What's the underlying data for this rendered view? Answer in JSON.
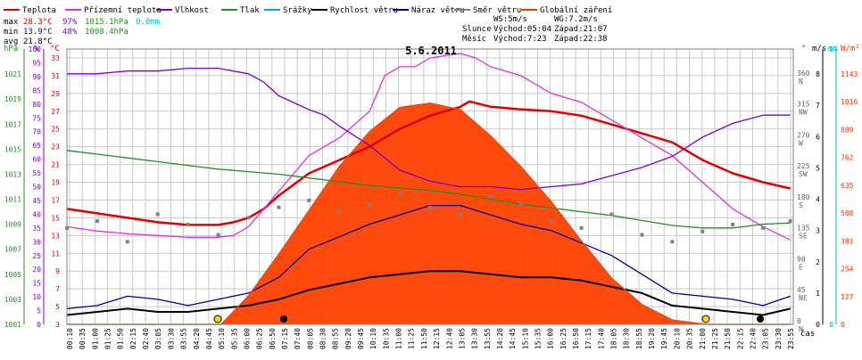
{
  "colors": {
    "teplota": "#e00000",
    "pocitova": "#e030e0",
    "vlhkost": "#8000c0",
    "tlak": "#209020",
    "srazky": "#00b0d0",
    "vitr": "#000000",
    "naraz": "#000090",
    "smer": "#808080",
    "zareni": "#ff3300",
    "zareni_fill": "#ff4000",
    "grid": "#c8c8c8",
    "frame": "#808080",
    "axis_hpa": "#209020",
    "axis_pct": "#8000c0",
    "axis_c": "#e00000",
    "axis_dir": "#606060",
    "axis_ms": "#000000",
    "axis_mm": "#00b0d0",
    "axis_wm2": "#ff3300"
  },
  "legend": [
    {
      "key": "teplota",
      "label": "Teplota"
    },
    {
      "key": "pocitova",
      "label": "Přízemní teplota"
    },
    {
      "key": "vlhkost",
      "label": "Vlhkost"
    },
    {
      "key": "tlak",
      "label": "Tlak"
    },
    {
      "key": "srazky",
      "label": "Srážky"
    },
    {
      "key": "vitr",
      "label": "Rychlost větru"
    },
    {
      "key": "naraz",
      "label": "Náraz větru"
    },
    {
      "key": "smer",
      "label": "Směr větru"
    },
    {
      "key": "zareni",
      "label": "Globální záření"
    }
  ],
  "stats": {
    "max_label": "max",
    "max_temp": "28.3°C",
    "max_hum": "97%",
    "max_press": "1015.1hPa",
    "rain": "0.0mm",
    "min_label": "min",
    "min_temp": "13.9°C",
    "min_hum": "48%",
    "min_press": "1008.4hPa",
    "avg_label": "avg",
    "avg_temp": "21.8°C"
  },
  "astro": {
    "ws": "WS:5m/s",
    "wg": "WG:7.2m/s",
    "sun_label": "Slunce",
    "sunrise": "Východ:05:04",
    "sunset": "Západ:21:07",
    "moon_label": "Měsíc",
    "moonrise": "Východ:7:23",
    "moonset": "Západ:22:38"
  },
  "chart_data": {
    "type": "line",
    "title": "5.6.2011",
    "xlabel": "čas",
    "x_ticks": [
      "00:10",
      "00:35",
      "01:00",
      "01:25",
      "01:50",
      "02:15",
      "02:40",
      "03:05",
      "03:30",
      "03:55",
      "04:20",
      "04:45",
      "05:10",
      "05:35",
      "06:00",
      "06:25",
      "06:50",
      "07:15",
      "07:40",
      "08:05",
      "08:30",
      "08:55",
      "09:20",
      "09:45",
      "10:10",
      "10:35",
      "11:00",
      "11:25",
      "11:50",
      "12:15",
      "12:40",
      "13:05",
      "13:30",
      "13:55",
      "14:20",
      "14:45",
      "15:10",
      "15:35",
      "16:00",
      "16:25",
      "16:50",
      "17:15",
      "17:40",
      "18:05",
      "18:30",
      "18:55",
      "19:20",
      "19:45",
      "20:10",
      "20:35",
      "21:00",
      "21:25",
      "21:50",
      "22:15",
      "22:40",
      "23:05",
      "23:30",
      "23:55"
    ],
    "axes": {
      "hpa": {
        "label": "hPa",
        "ticks": [
          "1001",
          "1003",
          "1005",
          "1007",
          "1009",
          "1011",
          "1013",
          "1015",
          "1017",
          "1019",
          "1021"
        ],
        "range": [
          1001,
          1023
        ]
      },
      "pct": {
        "label": "%",
        "ticks": [
          "0",
          "5",
          "10",
          "15",
          "20",
          "25",
          "30",
          "35",
          "40",
          "45",
          "50",
          "55",
          "60",
          "65",
          "70",
          "75",
          "80",
          "85",
          "90",
          "95",
          "100"
        ],
        "range": [
          0,
          100
        ]
      },
      "temp": {
        "label": "°C",
        "ticks": [
          "3",
          "5",
          "7",
          "9",
          "11",
          "13",
          "15",
          "17",
          "19",
          "21",
          "23",
          "25",
          "27",
          "29",
          "31",
          "33"
        ],
        "range": [
          3,
          34
        ]
      },
      "dir": {
        "label": "°",
        "ticks": [
          {
            "v": "0",
            "d": "N"
          },
          {
            "v": "45",
            "d": "NE"
          },
          {
            "v": "90",
            "d": "E"
          },
          {
            "v": "135",
            "d": "SE"
          },
          {
            "v": "180",
            "d": "S"
          },
          {
            "v": "225",
            "d": "SW"
          },
          {
            "v": "270",
            "d": "W"
          },
          {
            "v": "315",
            "d": "NW"
          },
          {
            "v": "360",
            "d": "N"
          }
        ],
        "range": [
          0,
          400
        ]
      },
      "ms": {
        "label": "m/s",
        "ticks": [
          "0",
          "1",
          "2",
          "3",
          "4",
          "5",
          "6",
          "7",
          "8"
        ],
        "range": [
          0,
          8.8
        ]
      },
      "mm": {
        "label": "mm",
        "ticks": [
          "0",
          "1"
        ],
        "range": [
          0,
          1
        ]
      },
      "wm2": {
        "label": "W/m²",
        "ticks": [
          "0",
          "127",
          "254",
          "381",
          "508",
          "635",
          "762",
          "889",
          "1016",
          "1143"
        ],
        "range": [
          0,
          1257
        ]
      }
    },
    "series": [
      {
        "name": "Teplota",
        "key": "teplota",
        "axis": "temp",
        "x": [
          0,
          1,
          2,
          3,
          4,
          5,
          5.5,
          6,
          6.5,
          7,
          8,
          9,
          10,
          11,
          12,
          13,
          13.3,
          14,
          15,
          16,
          17,
          18,
          19,
          20,
          20.5,
          21,
          22,
          23,
          23.9
        ],
        "y": [
          16,
          15.5,
          15,
          14.5,
          14.2,
          14.2,
          14.5,
          15,
          16,
          17.5,
          20,
          21.5,
          23,
          25,
          26.5,
          27.5,
          28.1,
          27.5,
          27.2,
          27,
          26.5,
          25.5,
          24.5,
          23.5,
          22.5,
          21.5,
          20,
          19,
          18.3
        ]
      },
      {
        "name": "Přízemní teplota",
        "key": "pocitova",
        "axis": "temp",
        "x": [
          0,
          1,
          2,
          3,
          4,
          5,
          5.5,
          6,
          6.5,
          7,
          7.5,
          8,
          9,
          10,
          10.5,
          11,
          11.5,
          12,
          13,
          13.5,
          14,
          15,
          16,
          17,
          18,
          18.5,
          19,
          20,
          21,
          22,
          23,
          23.9
        ],
        "y": [
          14,
          13.5,
          13.2,
          13,
          12.8,
          12.8,
          13,
          14,
          16,
          18,
          20,
          22,
          24,
          27,
          31,
          32,
          32,
          33,
          33.5,
          33,
          32,
          31,
          29,
          28,
          26,
          25,
          24,
          22,
          19,
          16,
          14,
          12.5
        ]
      },
      {
        "name": "Vlhkost",
        "key": "vlhkost",
        "axis": "pct",
        "x": [
          0,
          1,
          2,
          3,
          4,
          5,
          6,
          6.5,
          7,
          8,
          8.5,
          9,
          10,
          11,
          12,
          13,
          14,
          15,
          16,
          17,
          18,
          19,
          20,
          21,
          22,
          23,
          23.9
        ],
        "y": [
          91,
          91,
          92,
          92,
          93,
          93,
          91,
          88,
          83,
          78,
          76,
          72,
          65,
          56,
          52,
          50,
          50,
          49,
          50,
          51,
          54,
          57,
          61,
          68,
          73,
          76,
          76
        ]
      },
      {
        "name": "Tlak",
        "key": "tlak",
        "axis": "hpa",
        "x": [
          0,
          1,
          2,
          3,
          4,
          5,
          6,
          7,
          8,
          9,
          10,
          11,
          12,
          13,
          14,
          15,
          16,
          17,
          18,
          19,
          20,
          21,
          22,
          23,
          23.9
        ],
        "y": [
          1014.9,
          1014.6,
          1014.3,
          1014.0,
          1013.7,
          1013.4,
          1013.2,
          1013.0,
          1012.7,
          1012.4,
          1012.1,
          1011.9,
          1011.7,
          1011.4,
          1011.0,
          1010.6,
          1010.3,
          1010.0,
          1009.7,
          1009.3,
          1008.9,
          1008.7,
          1008.7,
          1009.0,
          1009.1
        ]
      },
      {
        "name": "Rychlost větru",
        "key": "vitr",
        "axis": "ms",
        "x": [
          0,
          1,
          2,
          3,
          4,
          5,
          6,
          7,
          8,
          9,
          10,
          11,
          12,
          13,
          14,
          15,
          16,
          17,
          18,
          19,
          20,
          21,
          22,
          23,
          23.9
        ],
        "y": [
          0.3,
          0.4,
          0.5,
          0.4,
          0.4,
          0.5,
          0.6,
          0.8,
          1.1,
          1.3,
          1.5,
          1.6,
          1.7,
          1.7,
          1.6,
          1.5,
          1.5,
          1.4,
          1.2,
          1.0,
          0.6,
          0.5,
          0.4,
          0.3,
          0.5
        ]
      },
      {
        "name": "Náraz větru",
        "key": "naraz",
        "axis": "ms",
        "x": [
          0,
          1,
          2,
          3,
          4,
          5,
          6,
          7,
          8,
          9,
          10,
          11,
          12,
          13,
          14,
          15,
          16,
          17,
          18,
          19,
          20,
          21,
          22,
          23,
          23.9
        ],
        "y": [
          0.5,
          0.6,
          0.9,
          0.8,
          0.6,
          0.8,
          1.0,
          1.5,
          2.4,
          2.8,
          3.2,
          3.5,
          3.8,
          3.8,
          3.5,
          3.2,
          3.0,
          2.6,
          2.2,
          1.6,
          1.0,
          0.9,
          0.8,
          0.6,
          0.9
        ]
      },
      {
        "name": "Směr větru",
        "key": "smer",
        "axis": "dir",
        "x": [
          0,
          1,
          2,
          3,
          4,
          5,
          6,
          7,
          8,
          9,
          10,
          11,
          12,
          13,
          14,
          15,
          16,
          17,
          18,
          19,
          20,
          21,
          22,
          23,
          23.9
        ],
        "y": [
          140,
          150,
          120,
          160,
          145,
          130,
          155,
          170,
          180,
          165,
          175,
          190,
          170,
          160,
          185,
          175,
          150,
          140,
          160,
          130,
          120,
          135,
          145,
          140,
          150
        ]
      },
      {
        "name": "Globální záření",
        "key": "zareni",
        "axis": "wm2",
        "x": [
          0,
          4,
          5.1,
          6,
          7,
          8,
          9,
          10,
          11,
          12,
          13,
          14,
          15,
          16,
          17,
          18,
          19,
          20,
          21.1,
          22,
          23.9
        ],
        "y": [
          0,
          0,
          0,
          130,
          320,
          520,
          720,
          880,
          990,
          1010,
          980,
          860,
          720,
          560,
          380,
          210,
          90,
          20,
          0,
          0,
          0
        ]
      }
    ]
  }
}
